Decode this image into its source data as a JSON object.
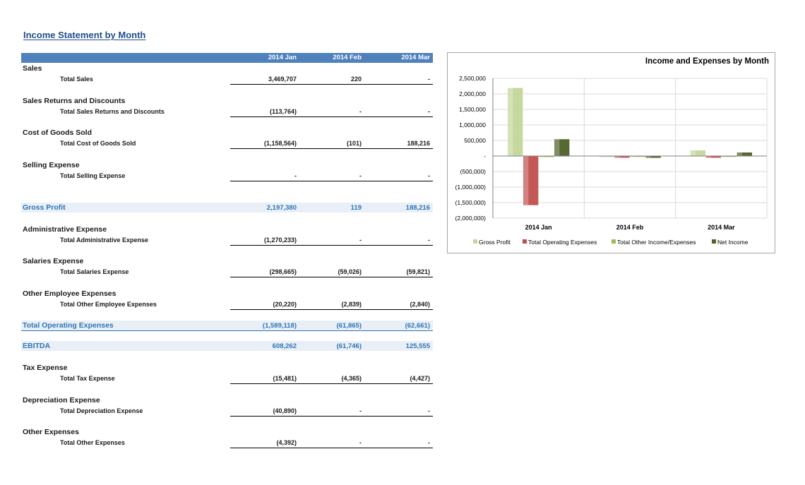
{
  "report": {
    "title": "Income Statement by Month",
    "columns": [
      "2014 Jan",
      "2014 Feb",
      "2014 Mar"
    ]
  },
  "rows": [
    {
      "kind": "section",
      "label": "Sales",
      "top": 91
    },
    {
      "kind": "total",
      "label": "Total Sales",
      "top": 107,
      "values": [
        "3,469,707",
        "220",
        "-"
      ]
    },
    {
      "kind": "section",
      "label": "Sales Returns and Discounts",
      "top": 137
    },
    {
      "kind": "total",
      "label": "Total Sales Returns and Discounts",
      "top": 153,
      "values": [
        "(113,764)",
        "-",
        "-"
      ]
    },
    {
      "kind": "section",
      "label": "Cost of Goods Sold",
      "top": 182
    },
    {
      "kind": "total",
      "label": "Total Cost of Goods Sold",
      "top": 198,
      "values": [
        "(1,158,564)",
        "(101)",
        "188,216"
      ]
    },
    {
      "kind": "section",
      "label": "Selling Expense",
      "top": 228
    },
    {
      "kind": "total",
      "label": "Total Selling Expense",
      "top": 244,
      "values": [
        "-",
        "-",
        "-"
      ]
    },
    {
      "kind": "highlight",
      "label": "Gross Profit",
      "top": 287,
      "values": [
        "2,197,380",
        "119",
        "188,216"
      ]
    },
    {
      "kind": "section",
      "label": "Administrative Expense",
      "top": 319
    },
    {
      "kind": "total",
      "label": "Total Administrative Expense",
      "top": 335,
      "values": [
        "(1,270,233)",
        "-",
        "-"
      ]
    },
    {
      "kind": "section",
      "label": "Salaries Expense",
      "top": 364
    },
    {
      "kind": "total",
      "label": "Total Salaries Expense",
      "top": 380,
      "values": [
        "(298,665)",
        "(59,026)",
        "(59,821)"
      ]
    },
    {
      "kind": "section",
      "label": "Other Employee Expenses",
      "top": 410
    },
    {
      "kind": "total",
      "label": "Total Other Employee Expenses",
      "top": 426,
      "values": [
        "(20,220)",
        "(2,839)",
        "(2,840)"
      ]
    },
    {
      "kind": "highlight",
      "label": "Total Operating Expenses",
      "top": 454,
      "values": [
        "(1,589,118)",
        "(61,865)",
        "(62,661)"
      ],
      "underline": true
    },
    {
      "kind": "highlight",
      "label": "EBITDA",
      "top": 483,
      "values": [
        "608,262",
        "(61,746)",
        "125,555"
      ]
    },
    {
      "kind": "section",
      "label": "Tax Expense",
      "top": 515
    },
    {
      "kind": "total",
      "label": "Total Tax Expense",
      "top": 531,
      "values": [
        "(15,481)",
        "(4,365)",
        "(4,427)"
      ]
    },
    {
      "kind": "section",
      "label": "Depreciation Expense",
      "top": 561
    },
    {
      "kind": "total",
      "label": "Total Depreciation Expense",
      "top": 577,
      "values": [
        "(40,890)",
        "-",
        "-"
      ]
    },
    {
      "kind": "section",
      "label": "Other Expenses",
      "top": 606
    },
    {
      "kind": "total",
      "label": "Total Other Expenses",
      "top": 622,
      "values": [
        "(4,392)",
        "-",
        "-"
      ]
    }
  ],
  "chart_data": {
    "type": "bar",
    "title": "Income and Expenses by Month",
    "categories": [
      "2014 Jan",
      "2014 Feb",
      "2014 Mar"
    ],
    "ylim": [
      -2000000,
      2500000
    ],
    "yticks": [
      2500000,
      2000000,
      1500000,
      1000000,
      500000,
      0,
      -500000,
      -1000000,
      -1500000,
      -2000000
    ],
    "ytick_labels": [
      "2,500,000",
      "2,000,000",
      "1,500,000",
      "1,000,000",
      "500,000",
      "-",
      "(500,000)",
      "(1,000,000)",
      "(1,500,000)",
      "(2,000,000)"
    ],
    "legend": "bottom",
    "grid": true,
    "series": [
      {
        "name": "Gross Profit",
        "color": "#c3d69b",
        "values": [
          2197380,
          119,
          188216
        ]
      },
      {
        "name": "Total Operating Expenses",
        "color": "#c0504d",
        "values": [
          -1589118,
          -61865,
          -62661
        ]
      },
      {
        "name": "Total Other Income/Expenses",
        "color": "#9bbb59",
        "values": [
          -40000,
          0,
          0
        ]
      },
      {
        "name": "Net Income",
        "color": "#4f6228",
        "values": [
          548000,
          -66000,
          121000
        ]
      }
    ]
  }
}
